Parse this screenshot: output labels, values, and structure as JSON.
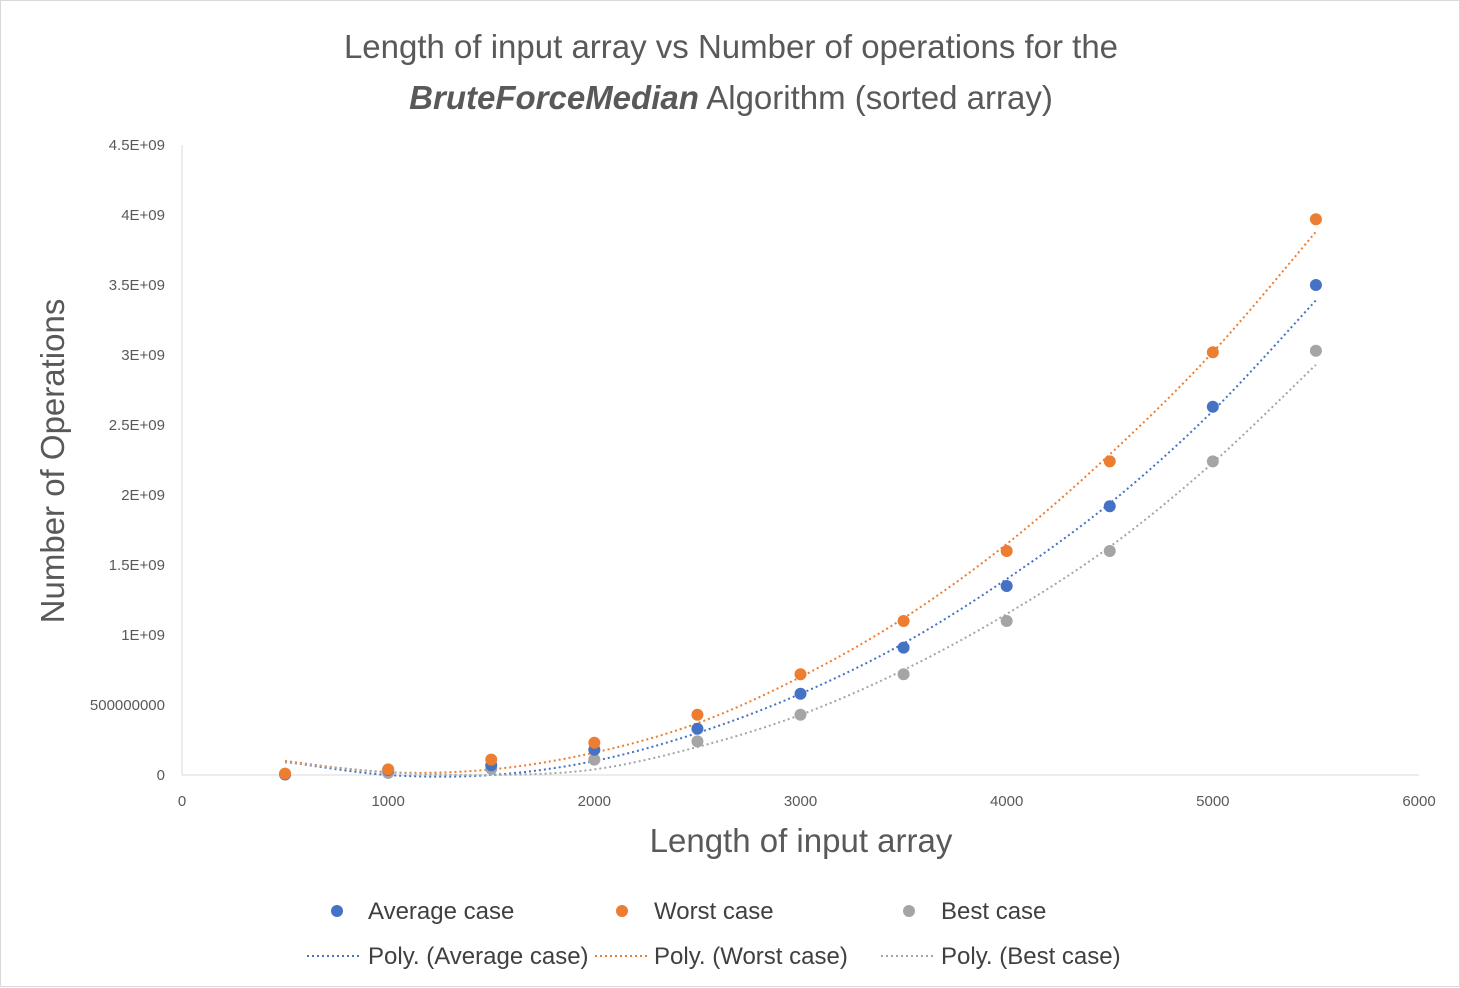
{
  "chart_data": {
    "type": "scatter",
    "title": {
      "line1": "Length of input array vs Number of operations for the",
      "line2_emphasis": "BruteForceMedian",
      "line2_rest": " Algorithm (sorted array)"
    },
    "xlabel": "Length of input array",
    "ylabel": "Number of Operations",
    "xlim": [
      0,
      6000
    ],
    "ylim": [
      0,
      4500000000
    ],
    "x_ticks": [
      0,
      1000,
      2000,
      3000,
      4000,
      5000,
      6000
    ],
    "x_tick_labels": [
      "0",
      "1000",
      "2000",
      "3000",
      "4000",
      "5000",
      "6000"
    ],
    "y_ticks": [
      0,
      500000000,
      1000000000,
      1500000000,
      2000000000,
      2500000000,
      3000000000,
      3500000000,
      4000000000,
      4500000000
    ],
    "y_tick_labels": [
      "0",
      "500000000",
      "1E+09",
      "1.5E+09",
      "2E+09",
      "2.5E+09",
      "3E+09",
      "3.5E+09",
      "4E+09",
      "4.5E+09"
    ],
    "grid": false,
    "legend_position": "bottom",
    "x": [
      500,
      1000,
      1500,
      2000,
      2500,
      3000,
      3500,
      4000,
      4500,
      5000,
      5500
    ],
    "series": [
      {
        "name": "Average case",
        "color": "#4472c4",
        "values": [
          5000000,
          35000000,
          70000000,
          180000000,
          330000000,
          580000000,
          910000000,
          1350000000,
          1920000000,
          2630000000,
          3500000000
        ]
      },
      {
        "name": "Worst case",
        "color": "#ed7d31",
        "values": [
          10000000,
          40000000,
          110000000,
          230000000,
          430000000,
          720000000,
          1100000000,
          1600000000,
          2240000000,
          3020000000,
          3970000000
        ]
      },
      {
        "name": "Best case",
        "color": "#a5a5a5",
        "values": [
          3000000,
          15000000,
          45000000,
          110000000,
          240000000,
          430000000,
          720000000,
          1100000000,
          1600000000,
          2240000000,
          3030000000
        ]
      }
    ],
    "trendlines": [
      {
        "name": "Poly. (Average case)",
        "color": "#4472c4",
        "x": [
          500,
          1000,
          1500,
          2000,
          2500,
          3000,
          3500,
          4000,
          4500,
          5000,
          5500
        ],
        "y": [
          95000000,
          0,
          0,
          100000000,
          300000000,
          580000000,
          940000000,
          1400000000,
          1940000000,
          2600000000,
          3390000000
        ]
      },
      {
        "name": "Poly. (Worst case)",
        "color": "#ed7d31",
        "x": [
          500,
          1000,
          1500,
          2000,
          2500,
          3000,
          3500,
          4000,
          4500,
          5000,
          5500
        ],
        "y": [
          100000000,
          20000000,
          40000000,
          160000000,
          370000000,
          700000000,
          1120000000,
          1650000000,
          2290000000,
          3020000000,
          3880000000
        ]
      },
      {
        "name": "Poly. (Best case)",
        "color": "#a5a5a5",
        "x": [
          500,
          1000,
          1500,
          2000,
          2500,
          3000,
          3500,
          4000,
          4500,
          5000,
          5500
        ],
        "y": [
          90000000,
          20000000,
          0,
          40000000,
          200000000,
          430000000,
          750000000,
          1150000000,
          1630000000,
          2230000000,
          2930000000
        ]
      }
    ]
  }
}
